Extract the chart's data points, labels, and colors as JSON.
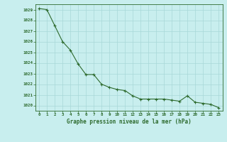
{
  "x": [
    0,
    1,
    2,
    3,
    4,
    5,
    6,
    7,
    8,
    9,
    10,
    11,
    12,
    13,
    14,
    15,
    16,
    17,
    18,
    19,
    20,
    21,
    22,
    23
  ],
  "y": [
    1029.1,
    1029.0,
    1027.5,
    1026.0,
    1025.2,
    1023.9,
    1022.9,
    1022.9,
    1022.0,
    1021.7,
    1021.5,
    1021.4,
    1020.9,
    1020.6,
    1020.6,
    1020.6,
    1020.6,
    1020.5,
    1020.4,
    1020.9,
    1020.3,
    1020.2,
    1020.1,
    1019.8
  ],
  "ylim": [
    1019.5,
    1029.5
  ],
  "yticks": [
    1020,
    1021,
    1022,
    1023,
    1024,
    1025,
    1026,
    1027,
    1028,
    1029
  ],
  "xticks": [
    0,
    1,
    2,
    3,
    4,
    5,
    6,
    7,
    8,
    9,
    10,
    11,
    12,
    13,
    14,
    15,
    16,
    17,
    18,
    19,
    20,
    21,
    22,
    23
  ],
  "xlabel": "Graphe pression niveau de la mer (hPa)",
  "line_color": "#2d6a2d",
  "marker_color": "#2d6a2d",
  "bg_color": "#c8eeee",
  "grid_color": "#a8d8d8",
  "tick_color": "#2d6a2d",
  "xlabel_color": "#2d6a2d"
}
